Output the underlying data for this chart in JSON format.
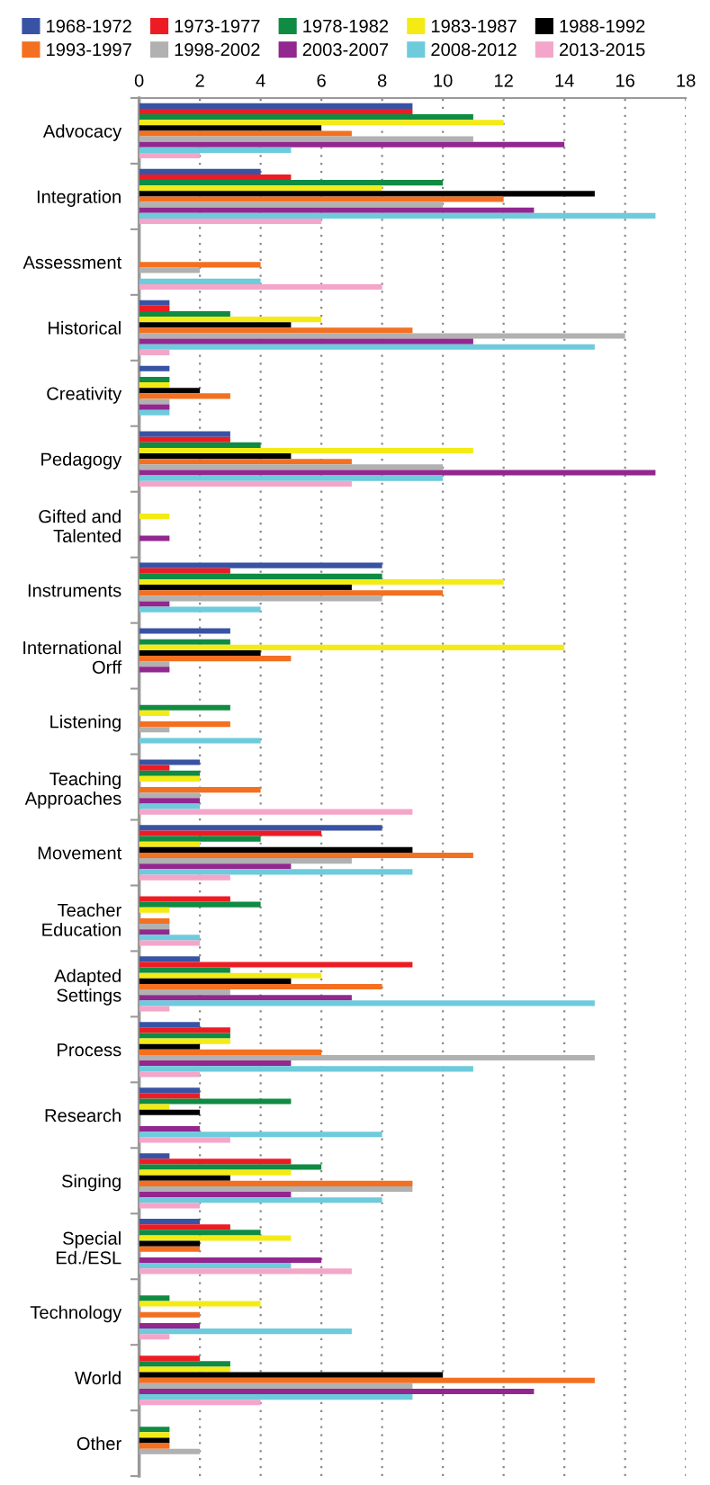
{
  "chart_data": {
    "type": "bar",
    "orientation": "horizontal",
    "categories": [
      "Advocacy",
      "Integration",
      "Assessment",
      "Historical",
      "Creativity",
      "Pedagogy",
      "Gifted and\nTalented",
      "Instruments",
      "International\nOrff",
      "Listening",
      "Teaching\nApproaches",
      "Movement",
      "Teacher\nEducation",
      "Adapted\nSettings",
      "Process",
      "Research",
      "Singing",
      "Special\nEd./ESL",
      "Technology",
      "World",
      "Other"
    ],
    "series": [
      {
        "name": "1968-1972",
        "color": "#3953a4",
        "values": [
          9,
          4,
          0,
          1,
          1,
          3,
          0,
          8,
          3,
          0,
          2,
          8,
          0,
          2,
          2,
          2,
          1,
          2,
          0,
          0,
          0
        ]
      },
      {
        "name": "1973-1977",
        "color": "#ed1c24",
        "values": [
          9,
          5,
          0,
          1,
          0,
          3,
          0,
          3,
          0,
          0,
          1,
          6,
          3,
          9,
          3,
          2,
          5,
          3,
          0,
          2,
          0
        ]
      },
      {
        "name": "1978-1982",
        "color": "#108b43",
        "values": [
          11,
          10,
          0,
          3,
          1,
          4,
          0,
          8,
          3,
          3,
          2,
          4,
          4,
          3,
          3,
          5,
          6,
          4,
          1,
          3,
          1
        ]
      },
      {
        "name": "1983-1987",
        "color": "#f4eb16",
        "values": [
          12,
          8,
          0,
          6,
          1,
          11,
          1,
          12,
          14,
          1,
          2,
          2,
          1,
          6,
          3,
          1,
          5,
          5,
          4,
          3,
          1
        ]
      },
      {
        "name": "1988-1992",
        "color": "#000000",
        "values": [
          6,
          15,
          0,
          5,
          2,
          5,
          0,
          7,
          4,
          0,
          0,
          9,
          0,
          5,
          2,
          2,
          3,
          2,
          0,
          10,
          1
        ]
      },
      {
        "name": "1993-1997",
        "color": "#f37021",
        "values": [
          7,
          12,
          4,
          9,
          3,
          7,
          0,
          10,
          5,
          3,
          4,
          11,
          1,
          8,
          6,
          0,
          9,
          2,
          2,
          15,
          1
        ]
      },
      {
        "name": "1998-2002",
        "color": "#b1b1b1",
        "values": [
          11,
          10,
          2,
          16,
          1,
          10,
          0,
          8,
          1,
          1,
          2,
          7,
          1,
          3,
          15,
          0,
          9,
          0,
          0,
          9,
          2
        ]
      },
      {
        "name": "2003-2007",
        "color": "#92278f",
        "values": [
          14,
          13,
          0,
          11,
          1,
          17,
          1,
          1,
          1,
          0,
          2,
          5,
          1,
          7,
          5,
          2,
          5,
          6,
          2,
          13,
          0
        ]
      },
      {
        "name": "2008-2012",
        "color": "#6dcbdc",
        "values": [
          5,
          17,
          4,
          15,
          1,
          10,
          0,
          4,
          0,
          4,
          2,
          9,
          2,
          15,
          11,
          8,
          8,
          5,
          7,
          9,
          0
        ]
      },
      {
        "name": "2013-2015",
        "color": "#f3a6c9",
        "values": [
          2,
          6,
          8,
          1,
          0,
          7,
          0,
          0,
          0,
          0,
          9,
          3,
          2,
          1,
          2,
          3,
          2,
          7,
          1,
          4,
          0
        ]
      }
    ],
    "xlim": [
      0,
      18
    ],
    "xticks": [
      0,
      2,
      4,
      6,
      8,
      10,
      12,
      14,
      16,
      18
    ],
    "grid": "x",
    "legend": "top"
  }
}
